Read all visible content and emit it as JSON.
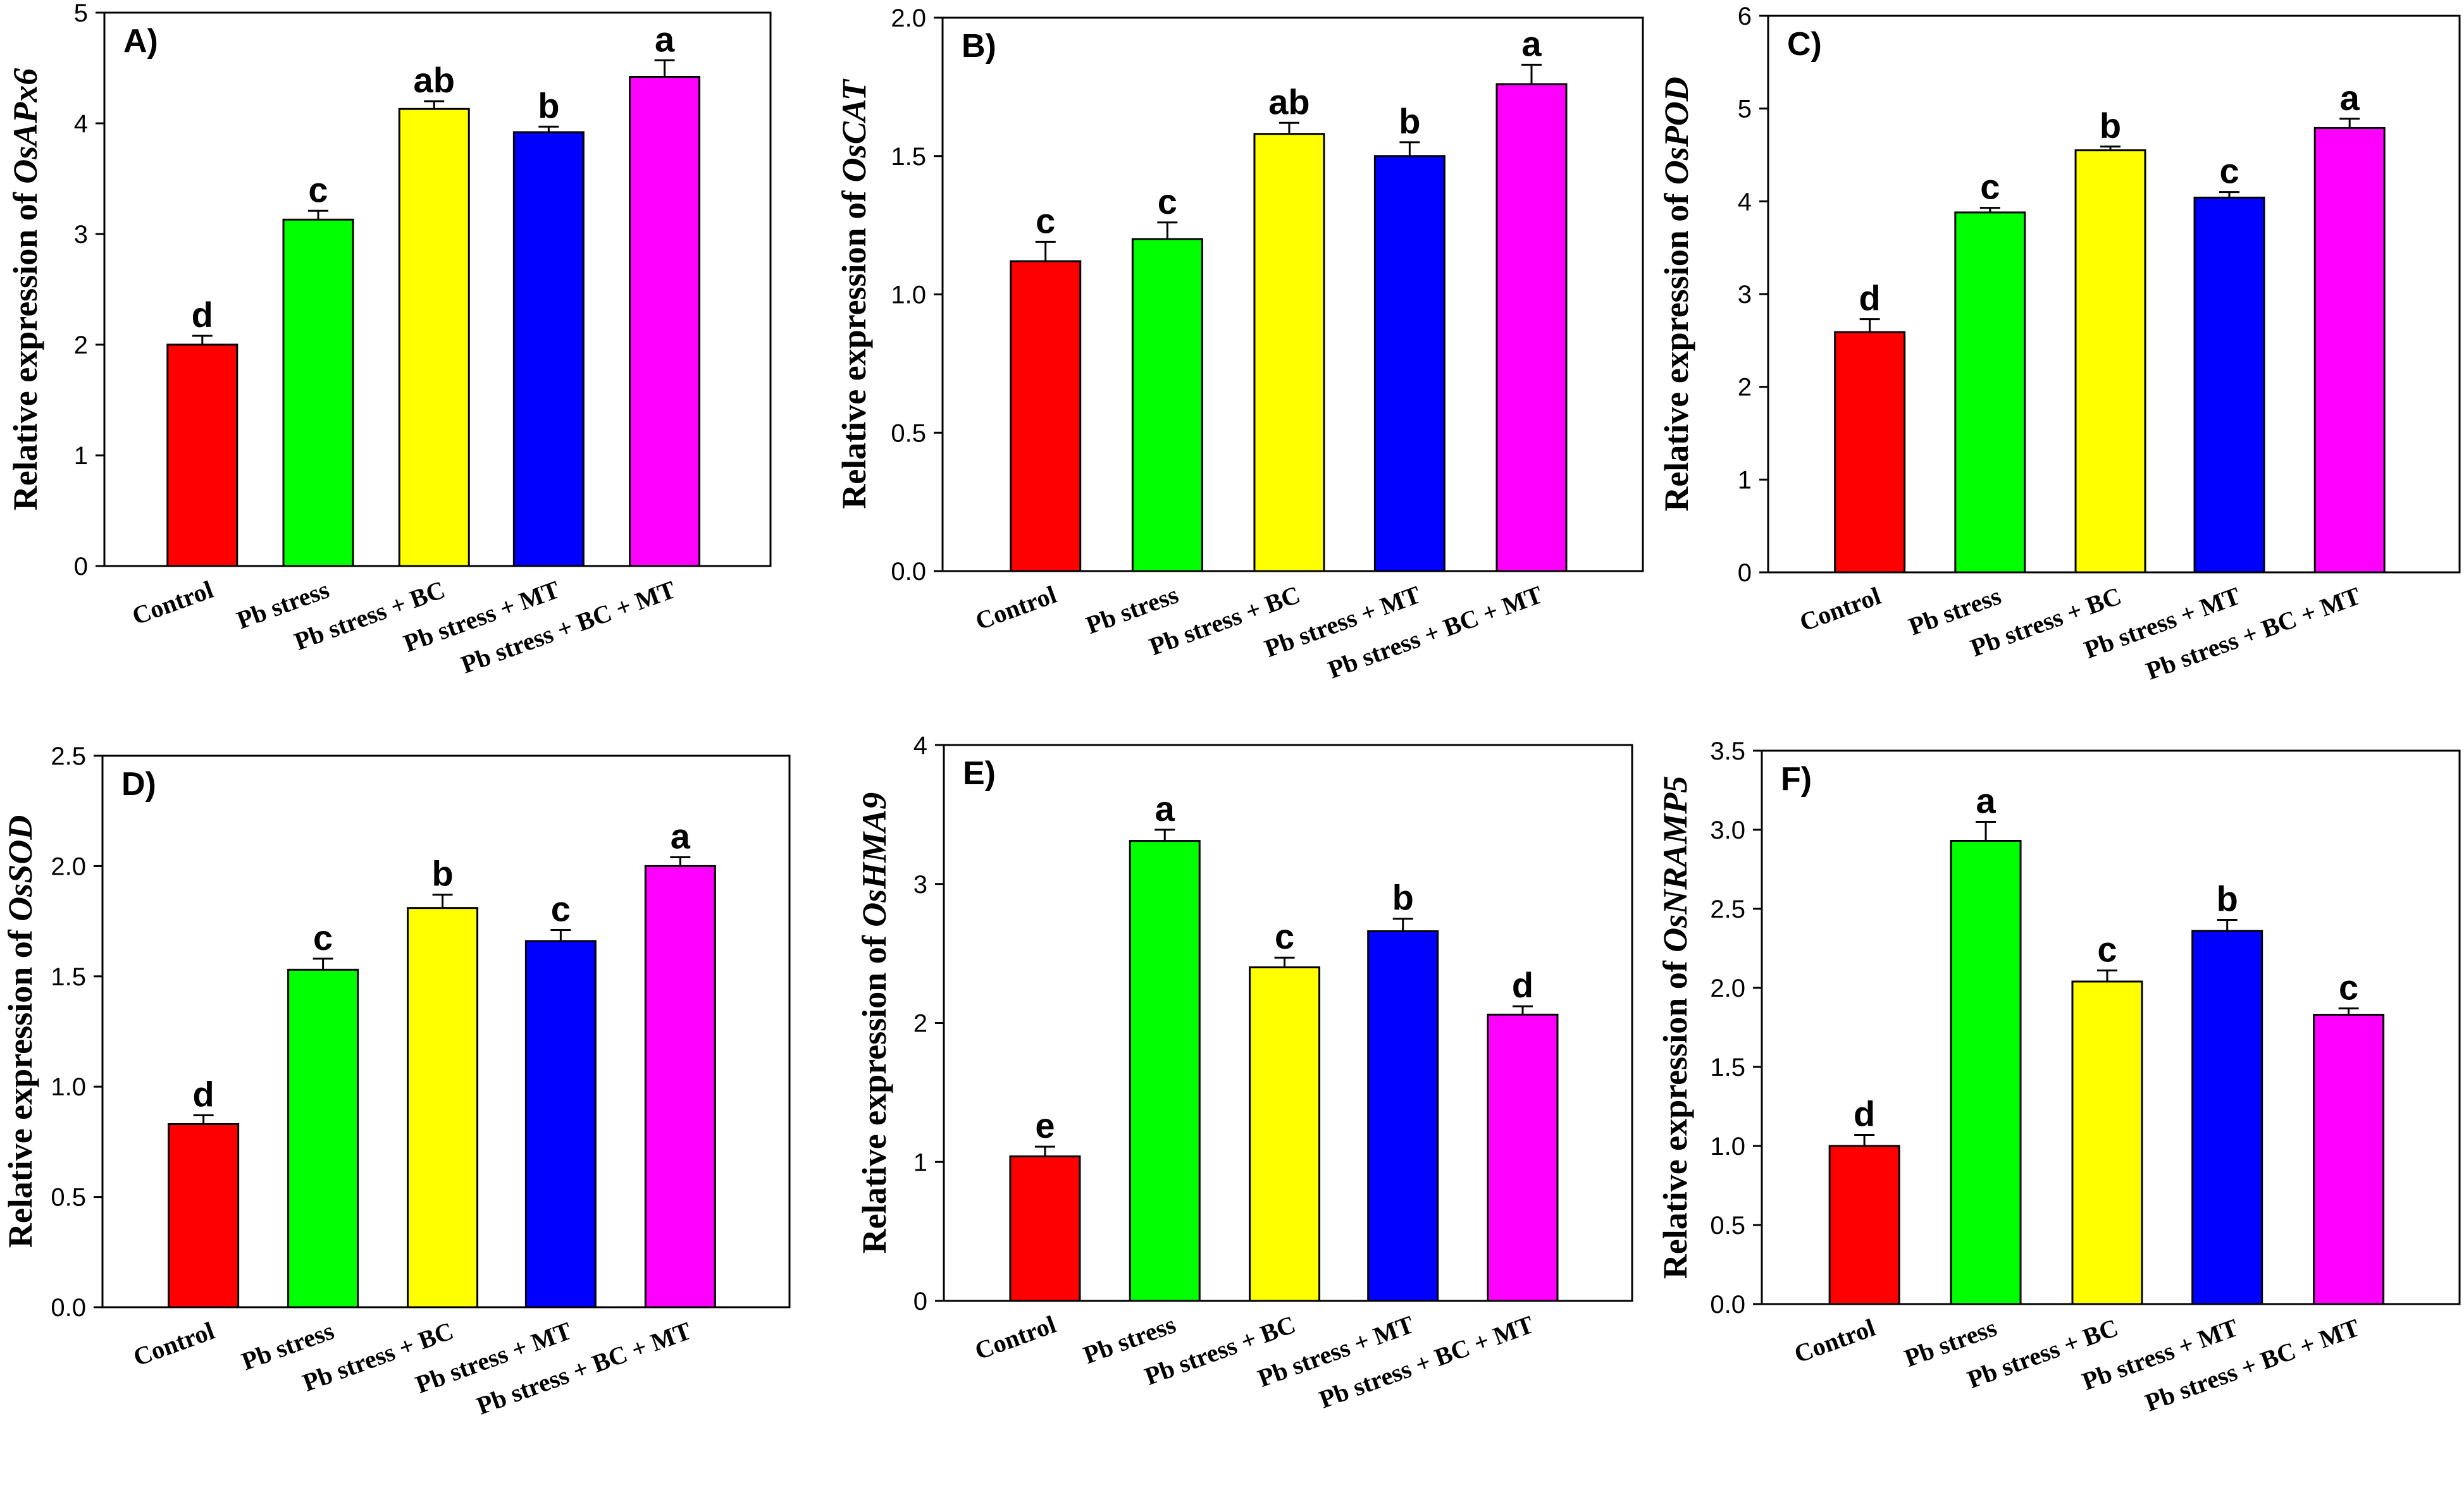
{
  "figure": {
    "categories": [
      "Control",
      "Pb stress",
      "Pb stress + BC",
      "Pb stress + MT",
      "Pb  stress + BC + MT"
    ],
    "bar_colors": [
      "#ff0000",
      "#00ff00",
      "#ffff00",
      "#0000ff",
      "#ff00ff"
    ],
    "ylabel_prefix": "Relative expression of"
  },
  "chart_data": [
    {
      "type": "bar",
      "panel": "A)",
      "gene": "OsAPx6",
      "ylabel": "Relative expression of OsAPx6",
      "ylim": [
        0,
        5
      ],
      "yticks": [
        "0",
        "1",
        "2",
        "3",
        "4",
        "5"
      ],
      "values": [
        2.0,
        3.13,
        4.13,
        3.92,
        4.42
      ],
      "errors": [
        0.08,
        0.08,
        0.07,
        0.05,
        0.15
      ],
      "labels": [
        "d",
        "c",
        "ab",
        "b",
        "a"
      ]
    },
    {
      "type": "bar",
      "panel": "B)",
      "gene": "OsCAT",
      "ylabel": "Relative expression of  OsCAT",
      "ylim": [
        0,
        2.0
      ],
      "yticks": [
        "0.0",
        "0.5",
        "1.0",
        "1.5",
        "2.0"
      ],
      "values": [
        1.12,
        1.2,
        1.58,
        1.5,
        1.76
      ],
      "errors": [
        0.07,
        0.06,
        0.04,
        0.05,
        0.07
      ],
      "labels": [
        "c",
        "c",
        "ab",
        "b",
        "a"
      ]
    },
    {
      "type": "bar",
      "panel": "C)",
      "gene": "OsPOD",
      "ylabel": "Relative expression of OsPOD",
      "ylim": [
        0,
        6
      ],
      "yticks": [
        "0",
        "1",
        "2",
        "3",
        "4",
        "5",
        "6"
      ],
      "values": [
        2.59,
        3.88,
        4.55,
        4.04,
        4.79
      ],
      "errors": [
        0.14,
        0.05,
        0.04,
        0.06,
        0.1
      ],
      "labels": [
        "d",
        "c",
        "b",
        "c",
        "a"
      ]
    },
    {
      "type": "bar",
      "panel": "D)",
      "gene": "OsSOD",
      "ylabel": "Relative expression of  OsSOD",
      "ylim": [
        0,
        2.5
      ],
      "yticks": [
        "0.0",
        "0.5",
        "1.0",
        "1.5",
        "2.0",
        "2.5"
      ],
      "values": [
        0.83,
        1.53,
        1.81,
        1.66,
        2.0
      ],
      "errors": [
        0.04,
        0.05,
        0.06,
        0.05,
        0.04
      ],
      "labels": [
        "d",
        "c",
        "b",
        "c",
        "a"
      ]
    },
    {
      "type": "bar",
      "panel": "E)",
      "gene": "OsHMA9",
      "ylabel": "Relative expression of OsHMA9",
      "ylim": [
        0,
        4
      ],
      "yticks": [
        "0",
        "1",
        "2",
        "3",
        "4"
      ],
      "values": [
        1.04,
        3.31,
        2.4,
        2.66,
        2.06
      ],
      "errors": [
        0.07,
        0.08,
        0.07,
        0.09,
        0.06
      ],
      "labels": [
        "e",
        "a",
        "c",
        "b",
        "d"
      ]
    },
    {
      "type": "bar",
      "panel": "F)",
      "gene": "OsNRAMP5",
      "ylabel": "Relative expression of OsNRAMP5",
      "ylim": [
        0,
        3.5
      ],
      "yticks": [
        "0.0",
        "0.5",
        "1.0",
        "1.5",
        "2.0",
        "2.5",
        "3.0",
        "3.5"
      ],
      "values": [
        1.0,
        2.93,
        2.04,
        2.36,
        1.83
      ],
      "errors": [
        0.07,
        0.12,
        0.07,
        0.07,
        0.04
      ],
      "labels": [
        "d",
        "a",
        "c",
        "b",
        "c"
      ]
    }
  ]
}
